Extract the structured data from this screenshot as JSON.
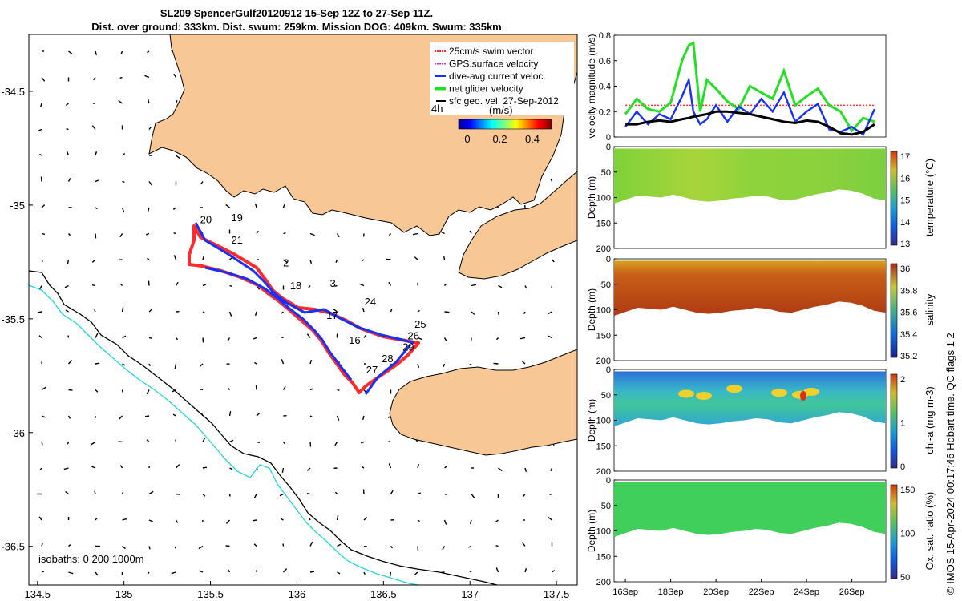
{
  "title": {
    "line1": "SL209 SpencerGulf20120912 15-Sep 12Z to 27-Sep 11Z.",
    "line2": "Dist. over ground: 333km. Dist. swum: 259km. Mission DOG: 409km. Swum: 335km"
  },
  "colors": {
    "land": "#f8c796",
    "isobath200": "#000000",
    "isobath1000": "#22d6e0",
    "track_gps": "#ff2a2a",
    "track_current": "#1530ff",
    "net_velocity": "#22e022",
    "geostrophic": "#000000"
  },
  "map": {
    "x_ticks": [
      "134.5",
      "135",
      "135.5",
      "136",
      "136.5",
      "137",
      "137.5"
    ],
    "y_ticks": [
      "-34.5",
      "-35",
      "-35.5",
      "-36",
      "-36.5"
    ],
    "legend": [
      {
        "label": "25cm/s swim vector",
        "color": "#ff2a2a",
        "style": "dot"
      },
      {
        "label": "GPS.surface velocity",
        "color": "#cc33cc",
        "style": "dot"
      },
      {
        "label": "dive-avg current veloc.",
        "color": "#1530ff",
        "style": "line"
      },
      {
        "label": "net glider velocity",
        "color": "#22e022",
        "style": "thick"
      },
      {
        "label": "sfc geo. vel. 27-Sep-2012",
        "color": "#000000",
        "style": "arrow"
      }
    ],
    "legend_time": "4h",
    "colorbar_label": "(m/s)",
    "colorbar_ticks": [
      "0",
      "0.2",
      "0.4"
    ],
    "isobath_text": "isobaths: 0   200  1000m",
    "day_labels": [
      {
        "t": "19",
        "lon": 135.62,
        "lat": -35.07
      },
      {
        "t": "20",
        "lon": 135.44,
        "lat": -35.08
      },
      {
        "t": "21",
        "lon": 135.62,
        "lat": -35.17
      },
      {
        "t": "2",
        "lon": 135.92,
        "lat": -35.27
      },
      {
        "t": "18",
        "lon": 135.96,
        "lat": -35.37
      },
      {
        "t": "3",
        "lon": 136.19,
        "lat": -35.36
      },
      {
        "t": "24",
        "lon": 136.39,
        "lat": -35.44
      },
      {
        "t": "17",
        "lon": 136.17,
        "lat": -35.5
      },
      {
        "t": "25",
        "lon": 136.68,
        "lat": -35.54
      },
      {
        "t": "26",
        "lon": 136.64,
        "lat": -35.59
      },
      {
        "t": "16",
        "lon": 136.3,
        "lat": -35.61
      },
      {
        "t": "29",
        "lon": 136.61,
        "lat": -35.64
      },
      {
        "t": "28",
        "lon": 136.49,
        "lat": -35.69
      },
      {
        "t": "27",
        "lon": 136.4,
        "lat": -35.74
      }
    ]
  },
  "chart_data": [
    {
      "type": "line",
      "ylabel": "velocity magnitude (m/s)",
      "ylim": [
        0,
        0.8
      ],
      "yticks": [
        "0",
        "0.2",
        "0.4",
        "0.6",
        "0.8"
      ],
      "x_days": [
        16,
        16.5,
        17,
        17.5,
        18,
        18.5,
        18.8,
        19,
        19.3,
        19.6,
        20,
        20.5,
        21,
        21.5,
        22,
        22.5,
        23,
        23.5,
        24,
        24.5,
        25,
        25.5,
        26,
        26.5,
        27
      ],
      "series": [
        {
          "name": "25cm/s swim vector",
          "color": "#ff2a2a",
          "values": [
            0.25,
            0.25,
            0.25,
            0.25,
            0.25,
            0.25,
            0.25,
            0.25,
            0.25,
            0.25,
            0.25,
            0.25,
            0.25,
            0.25,
            0.25,
            0.25,
            0.25,
            0.25,
            0.25,
            0.25,
            0.25,
            0.25,
            0.25,
            0.25,
            0.25
          ]
        },
        {
          "name": "net glider velocity",
          "color": "#22e022",
          "values": [
            0.18,
            0.3,
            0.22,
            0.2,
            0.27,
            0.6,
            0.72,
            0.74,
            0.2,
            0.45,
            0.38,
            0.28,
            0.22,
            0.4,
            0.35,
            0.3,
            0.52,
            0.25,
            0.32,
            0.38,
            0.25,
            0.2,
            0.05,
            0.15,
            0.12
          ]
        },
        {
          "name": "dive-avg current veloc.",
          "color": "#1530ff",
          "values": [
            0.08,
            0.2,
            0.1,
            0.18,
            0.14,
            0.32,
            0.45,
            0.2,
            0.1,
            0.14,
            0.25,
            0.12,
            0.24,
            0.18,
            0.3,
            0.2,
            0.35,
            0.12,
            0.2,
            0.26,
            0.06,
            0.04,
            0.08,
            0.02,
            0.22
          ]
        },
        {
          "name": "sfc geo. vel.",
          "color": "#000000",
          "values": [
            0.1,
            0.1,
            0.12,
            0.13,
            0.12,
            0.14,
            0.15,
            0.16,
            0.17,
            0.18,
            0.2,
            0.2,
            0.19,
            0.18,
            0.16,
            0.14,
            0.12,
            0.11,
            0.13,
            0.12,
            0.08,
            0.03,
            0.02,
            0.04,
            0.1
          ]
        }
      ]
    },
    {
      "type": "heatmap",
      "variable": "temperature",
      "clabel": "temperature (°C)",
      "cticks": [
        "13",
        "14",
        "15",
        "16",
        "17"
      ],
      "ylabel": "Depth (m)",
      "yticks": [
        "0",
        "50",
        "100",
        "150",
        "200"
      ],
      "ylim": [
        0,
        200
      ],
      "bottom_depth_by_day": [
        112,
        104,
        96,
        98,
        100,
        94,
        100,
        106,
        108,
        106,
        102,
        100,
        96,
        98,
        104,
        106,
        100,
        94,
        90,
        84,
        86,
        92,
        102,
        106
      ],
      "dominant_value": "16"
    },
    {
      "type": "heatmap",
      "variable": "salinity",
      "clabel": "salinity",
      "cticks": [
        "35.2",
        "35.4",
        "35.6",
        "35.8",
        "36"
      ],
      "ylabel": "Depth (m)",
      "yticks": [
        "0",
        "50",
        "100",
        "150",
        "200"
      ],
      "ylim": [
        0,
        200
      ],
      "bottom_depth_by_day": [
        112,
        104,
        96,
        98,
        100,
        94,
        100,
        106,
        108,
        106,
        102,
        100,
        96,
        98,
        104,
        106,
        100,
        94,
        90,
        84,
        86,
        92,
        102,
        106
      ],
      "dominant_value": "35.9"
    },
    {
      "type": "heatmap",
      "variable": "chl-a",
      "clabel": "chl-a (mg m-3)",
      "cticks": [
        "0",
        "1",
        "2"
      ],
      "ylabel": "Depth (m)",
      "yticks": [
        "0",
        "50",
        "100",
        "150",
        "200"
      ],
      "ylim": [
        0,
        200
      ],
      "bottom_depth_by_day": [
        112,
        104,
        96,
        98,
        100,
        94,
        100,
        106,
        108,
        106,
        102,
        100,
        96,
        98,
        104,
        106,
        100,
        94,
        90,
        84,
        86,
        92,
        102,
        106
      ],
      "dominant_value": "0.8"
    },
    {
      "type": "heatmap",
      "variable": "oxygen",
      "clabel": "Ox. sat. ratio (%)",
      "cticks": [
        "50",
        "100",
        "150"
      ],
      "ylabel": "Depth (m)",
      "yticks": [
        "0",
        "50",
        "100",
        "150",
        "200"
      ],
      "ylim": [
        0,
        200
      ],
      "bottom_depth_by_day": [
        112,
        104,
        96,
        98,
        100,
        94,
        100,
        106,
        108,
        106,
        102,
        100,
        96,
        98,
        104,
        106,
        100,
        94,
        90,
        84,
        86,
        92,
        102,
        106
      ],
      "dominant_value": "102"
    }
  ],
  "time_axis": {
    "ticks": [
      "16Sep",
      "18Sep",
      "20Sep",
      "22Sep",
      "24Sep",
      "26Sep"
    ],
    "days": [
      16,
      18,
      20,
      22,
      24,
      26
    ],
    "range": [
      15.5,
      27.5
    ]
  },
  "footer": "© IMOS 15-Apr-2024 00:17:46 Hobart time. QC flags 1  2"
}
